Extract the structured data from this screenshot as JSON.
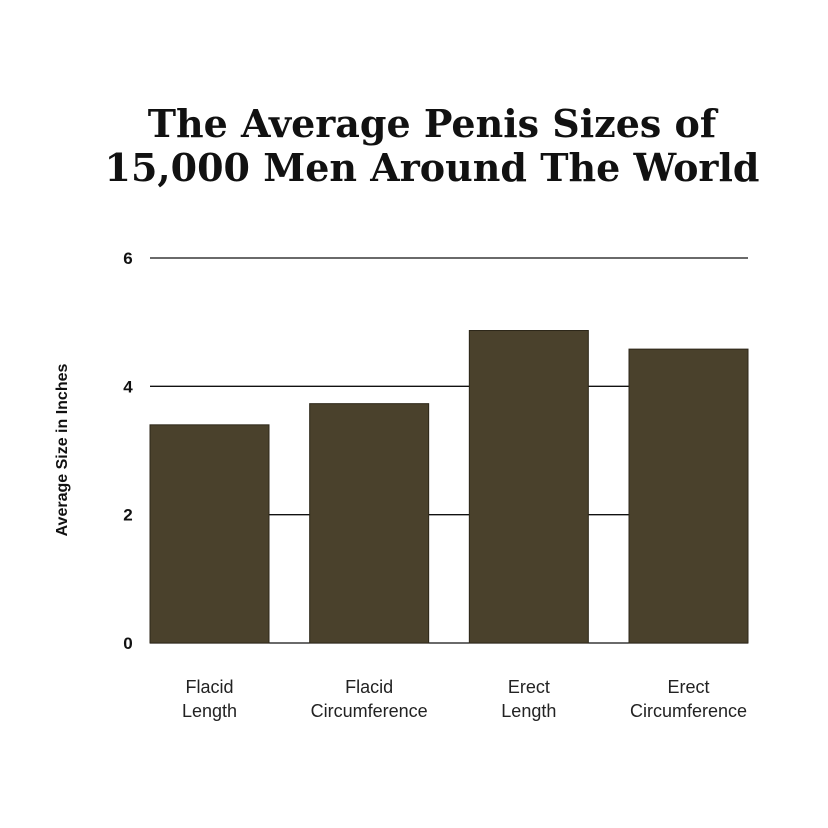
{
  "chart_data": {
    "type": "bar",
    "title_lines": [
      "The Average Penis Sizes of",
      "15,000 Men Around The World"
    ],
    "ylabel": "Average Size in Inches",
    "xlabel": "",
    "categories": [
      [
        "Flacid",
        "Length"
      ],
      [
        "Flacid",
        "Circumference"
      ],
      [
        "Erect",
        "Length"
      ],
      [
        "Erect",
        "Circumference"
      ]
    ],
    "values": [
      3.4,
      3.73,
      4.87,
      4.58
    ],
    "ylim": [
      0,
      6
    ],
    "yticks": [
      0,
      2,
      4,
      6
    ],
    "grid": true,
    "legend": "none",
    "colors": {
      "bar": "#4a412c",
      "grid": "#111111",
      "text": "#111111"
    }
  }
}
